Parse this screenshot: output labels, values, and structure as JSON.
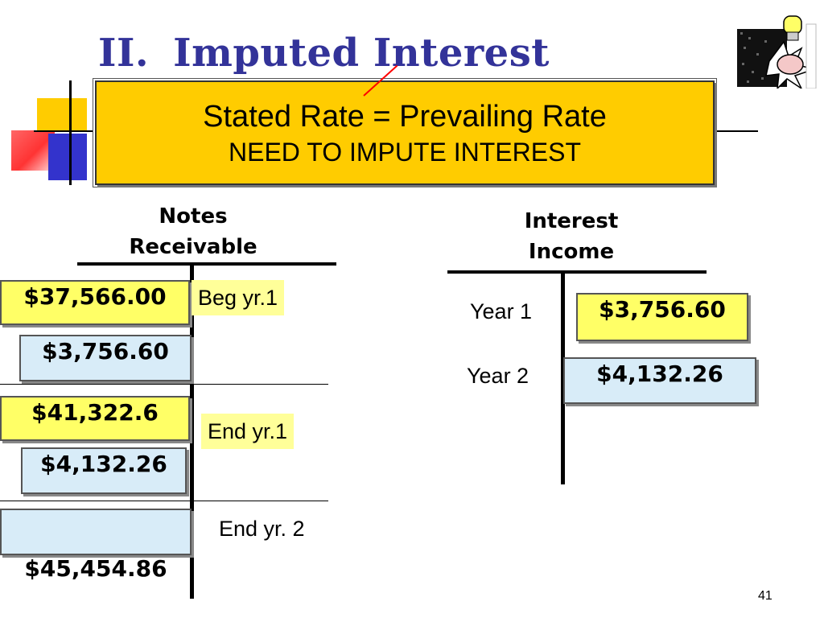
{
  "slide": {
    "title_number": "II.",
    "title_text": "Imputed Interest",
    "page_number": "41"
  },
  "callout": {
    "line1": "Stated Rate = Prevailing Rate",
    "line2": "NEED TO IMPUTE INTEREST",
    "strike_color": "#ff0000"
  },
  "notes_receivable": {
    "header": "Notes Receivable",
    "entries": [
      {
        "amount": "$37,566.00",
        "label": "Beg yr.1"
      },
      {
        "amount": "$3,756.60"
      },
      {
        "amount": "$41,322.6",
        "label": "End yr.1"
      },
      {
        "amount": "$4,132.26"
      },
      {
        "amount": "$45,454.86",
        "label": "End yr. 2"
      }
    ]
  },
  "interest_income": {
    "header": "Interest Income",
    "entries": [
      {
        "label": "Year 1",
        "amount": "$3,756.60"
      },
      {
        "label": "Year 2",
        "amount": "$4,132.26"
      }
    ]
  },
  "colors": {
    "title": "#333399",
    "callout_bg": "#ffcc00",
    "box_yellow": "#ffff66",
    "box_blue": "#d8ecf8",
    "tag_yellow": "#ffff99"
  },
  "icons": [
    "lightbulb-clipart-icon"
  ]
}
